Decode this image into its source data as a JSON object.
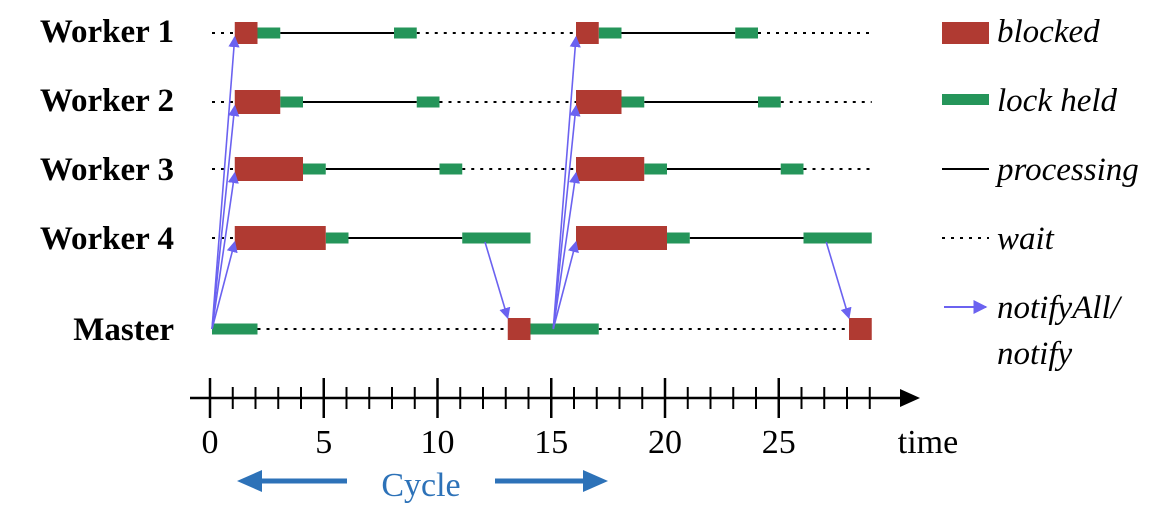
{
  "rows": [
    {
      "label": "Worker 1"
    },
    {
      "label": "Worker 2"
    },
    {
      "label": "Worker 3"
    },
    {
      "label": "Worker 4"
    },
    {
      "label": "Master"
    }
  ],
  "legend": {
    "blocked": "blocked",
    "lock_held": "lock held",
    "processing": "processing",
    "wait": "wait",
    "notify_line1": "notifyAll/",
    "notify_line2": "notify"
  },
  "axis": {
    "label": "time",
    "min": 0,
    "max": 29,
    "minor_step": 1,
    "major_step": 5,
    "tick_labels": [
      "0",
      "5",
      "10",
      "15",
      "20",
      "25"
    ]
  },
  "cycle_label": "Cycle",
  "colors": {
    "blocked": "#b03a32",
    "lock_held": "#25955a",
    "notify": "#6b62f0",
    "cycle": "#2d72b8",
    "line": "#000000"
  },
  "timeline": {
    "worker1": {
      "blocked": [
        [
          1,
          2
        ],
        [
          16,
          17
        ]
      ],
      "lock_held": [
        [
          2,
          3
        ],
        [
          8,
          9
        ],
        [
          17,
          18
        ],
        [
          23,
          24
        ]
      ],
      "processing": [
        [
          3,
          8
        ],
        [
          18,
          23
        ]
      ],
      "wait": [
        [
          0,
          1
        ],
        [
          9,
          16
        ],
        [
          24,
          29
        ]
      ]
    },
    "worker2": {
      "blocked": [
        [
          1,
          3
        ],
        [
          16,
          18
        ]
      ],
      "lock_held": [
        [
          3,
          4
        ],
        [
          9,
          10
        ],
        [
          18,
          19
        ],
        [
          24,
          25
        ]
      ],
      "processing": [
        [
          4,
          9
        ],
        [
          19,
          24
        ]
      ],
      "wait": [
        [
          0,
          1
        ],
        [
          10,
          16
        ],
        [
          25,
          29
        ]
      ]
    },
    "worker3": {
      "blocked": [
        [
          1,
          4
        ],
        [
          16,
          19
        ]
      ],
      "lock_held": [
        [
          4,
          5
        ],
        [
          10,
          11
        ],
        [
          19,
          20
        ],
        [
          25,
          26
        ]
      ],
      "processing": [
        [
          5,
          10
        ],
        [
          20,
          25
        ]
      ],
      "wait": [
        [
          0,
          1
        ],
        [
          11,
          16
        ],
        [
          26,
          29
        ]
      ]
    },
    "worker4": {
      "blocked": [
        [
          1,
          5
        ],
        [
          16,
          20
        ]
      ],
      "lock_held": [
        [
          5,
          6
        ],
        [
          11,
          14
        ],
        [
          20,
          21
        ],
        [
          26,
          29
        ]
      ],
      "processing": [
        [
          6,
          11
        ],
        [
          21,
          26
        ]
      ],
      "wait": [
        [
          0,
          1
        ]
      ]
    },
    "master": {
      "blocked": [
        [
          13,
          14
        ],
        [
          28,
          29
        ]
      ],
      "lock_held": [
        [
          0,
          2
        ],
        [
          14,
          17
        ]
      ],
      "wait": [
        [
          2,
          13
        ],
        [
          17,
          28
        ]
      ]
    }
  },
  "notifications": [
    {
      "from": "master",
      "from_t": 0,
      "to": "worker1",
      "to_t": 1
    },
    {
      "from": "master",
      "from_t": 0,
      "to": "worker2",
      "to_t": 1
    },
    {
      "from": "master",
      "from_t": 0,
      "to": "worker3",
      "to_t": 1
    },
    {
      "from": "master",
      "from_t": 0,
      "to": "worker4",
      "to_t": 1
    },
    {
      "from": "worker4",
      "from_t": 12,
      "to": "master",
      "to_t": 13
    },
    {
      "from": "master",
      "from_t": 15,
      "to": "worker1",
      "to_t": 16
    },
    {
      "from": "master",
      "from_t": 15,
      "to": "worker2",
      "to_t": 16
    },
    {
      "from": "master",
      "from_t": 15,
      "to": "worker3",
      "to_t": 16
    },
    {
      "from": "master",
      "from_t": 15,
      "to": "worker4",
      "to_t": 16
    },
    {
      "from": "worker4",
      "from_t": 27,
      "to": "master",
      "to_t": 28
    }
  ]
}
